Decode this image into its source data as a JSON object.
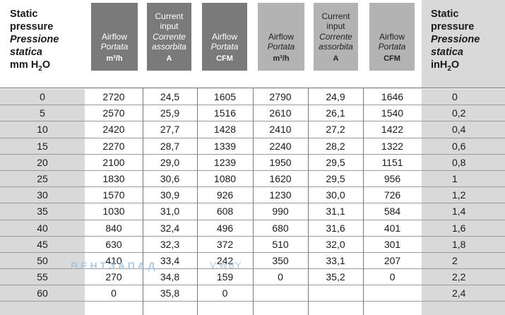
{
  "header": {
    "left": {
      "line1": "Static",
      "line2": "pressure",
      "line3": "Pressione",
      "line4": "statica",
      "unit": "mm H",
      "unit_sub": "2",
      "unit_end": "O"
    },
    "right": {
      "line1": "Static",
      "line2": "pressure",
      "line3": "Pressione",
      "line4": "statica",
      "unit": "inH",
      "unit_sub": "2",
      "unit_end": "O"
    },
    "groups": [
      {
        "type": "dark",
        "cols": [
          {
            "lines": [
              "Airflow"
            ],
            "italic": "Portata",
            "unit": "m³/h"
          },
          {
            "lines": [
              "Current",
              "input"
            ],
            "italic": "Corrente assorbita",
            "unit": "A"
          },
          {
            "lines": [
              "Airflow"
            ],
            "italic": "Portata",
            "unit": "CFM"
          }
        ]
      },
      {
        "type": "light",
        "cols": [
          {
            "lines": [
              "Airflow"
            ],
            "italic": "Portata",
            "unit": "m³/h"
          },
          {
            "lines": [
              "Current",
              "input"
            ],
            "italic": "Corrente assorbita",
            "unit": "A"
          },
          {
            "lines": [
              "Airflow"
            ],
            "italic": "Portata",
            "unit": "CFM"
          }
        ]
      }
    ]
  },
  "rows": [
    [
      "0",
      "2720",
      "24,5",
      "1605",
      "2790",
      "24,9",
      "1646",
      "0"
    ],
    [
      "5",
      "2570",
      "25,9",
      "1516",
      "2610",
      "26,1",
      "1540",
      "0,2"
    ],
    [
      "10",
      "2420",
      "27,7",
      "1428",
      "2410",
      "27,2",
      "1422",
      "0,4"
    ],
    [
      "15",
      "2270",
      "28,7",
      "1339",
      "2240",
      "28,2",
      "1322",
      "0,6"
    ],
    [
      "20",
      "2100",
      "29,0",
      "1239",
      "1950",
      "29,5",
      "1151",
      "0,8"
    ],
    [
      "25",
      "1830",
      "30,6",
      "1080",
      "1620",
      "29,5",
      "956",
      "1"
    ],
    [
      "30",
      "1570",
      "30,9",
      "926",
      "1230",
      "30,0",
      "726",
      "1,2"
    ],
    [
      "35",
      "1030",
      "31,0",
      "608",
      "990",
      "31,1",
      "584",
      "1,4"
    ],
    [
      "40",
      "840",
      "32,4",
      "496",
      "680",
      "31,6",
      "401",
      "1,6"
    ],
    [
      "45",
      "630",
      "32,3",
      "372",
      "510",
      "32,0",
      "301",
      "1,8"
    ],
    [
      "50",
      "410",
      "33,4",
      "242",
      "350",
      "33,1",
      "207",
      "2"
    ],
    [
      "55",
      "270",
      "34,8",
      "159",
      "0",
      "35,2",
      "0",
      "2,2"
    ],
    [
      "60",
      "0",
      "35,8",
      "0",
      "",
      "",
      "",
      "2,4"
    ]
  ],
  "watermark": {
    "text": "ВЕНТЗАПАД",
    "suffix": "V.WBY"
  }
}
